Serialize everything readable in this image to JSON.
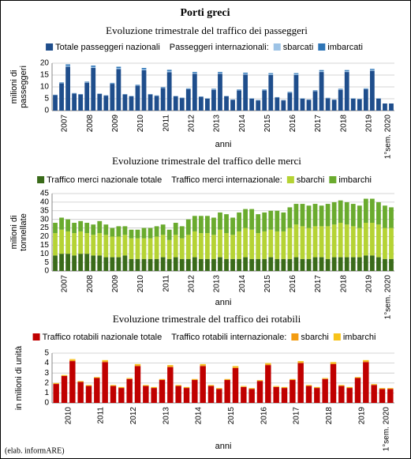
{
  "title": "Porti greci",
  "footer": "(elab. informARE)",
  "chart_data": [
    {
      "type": "bar",
      "stacked": true,
      "grid": true,
      "title": "Evoluzione trimestrale del traffico dei passeggeri",
      "ylabel": [
        "milioni di",
        "passeggeri"
      ],
      "xlabel": "anni",
      "legend_group_label": "Passeggeri internazionali:",
      "categories": [
        null,
        "2007",
        null,
        null,
        null,
        "2008",
        null,
        null,
        null,
        "2009",
        null,
        null,
        null,
        "2010",
        null,
        null,
        null,
        "2011",
        null,
        null,
        null,
        "2012",
        null,
        null,
        null,
        "2013",
        null,
        null,
        null,
        "2014",
        null,
        null,
        null,
        "2015",
        null,
        null,
        null,
        "2016",
        null,
        null,
        null,
        "2017",
        null,
        null,
        null,
        "2018",
        null,
        null,
        null,
        "2019",
        null,
        null,
        "1°sem. 2020",
        null
      ],
      "ylim": [
        0,
        20
      ],
      "yticks": [
        0,
        5,
        10,
        15,
        20
      ],
      "series": [
        {
          "name": "Totale passeggeri nazionali",
          "color": "#1f4e8c",
          "values": [
            6.5,
            11.5,
            18.5,
            7.2,
            6.8,
            11.8,
            18.0,
            7.0,
            6.3,
            11.3,
            17.5,
            6.8,
            6.0,
            10.5,
            17.0,
            6.8,
            6.2,
            9.5,
            16.2,
            6.0,
            5.3,
            9.0,
            15.5,
            5.8,
            5.0,
            8.8,
            15.5,
            6.0,
            4.5,
            8.5,
            15.2,
            5.0,
            4.3,
            8.5,
            15.0,
            5.5,
            4.3,
            7.5,
            15.0,
            5.0,
            4.5,
            8.2,
            16.3,
            5.2,
            4.5,
            8.8,
            16.3,
            5.0,
            4.8,
            9.0,
            16.8,
            5.0,
            3.0,
            3.0
          ]
        },
        {
          "name": "sbarcati",
          "color": "#9dc3e6",
          "values": [
            0.1,
            0.2,
            0.5,
            0.1,
            0.1,
            0.2,
            0.5,
            0.1,
            0.1,
            0.2,
            0.5,
            0.1,
            0.1,
            0.2,
            0.5,
            0.1,
            0.1,
            0.2,
            0.5,
            0.1,
            0.1,
            0.2,
            0.4,
            0.1,
            0.1,
            0.2,
            0.4,
            0.1,
            0.1,
            0.2,
            0.4,
            0.1,
            0.1,
            0.2,
            0.4,
            0.1,
            0.1,
            0.2,
            0.4,
            0.1,
            0.1,
            0.2,
            0.4,
            0.1,
            0.1,
            0.2,
            0.4,
            0.1,
            0.1,
            0.2,
            0.4,
            0.1,
            0.0,
            0.0
          ]
        },
        {
          "name": "imbarcati",
          "color": "#2e75b6",
          "values": [
            0.1,
            0.2,
            0.5,
            0.1,
            0.1,
            0.2,
            0.5,
            0.1,
            0.1,
            0.2,
            0.5,
            0.1,
            0.1,
            0.2,
            0.5,
            0.1,
            0.1,
            0.2,
            0.5,
            0.1,
            0.1,
            0.2,
            0.4,
            0.1,
            0.1,
            0.2,
            0.4,
            0.1,
            0.1,
            0.2,
            0.4,
            0.1,
            0.1,
            0.2,
            0.4,
            0.1,
            0.1,
            0.2,
            0.4,
            0.1,
            0.1,
            0.2,
            0.4,
            0.1,
            0.1,
            0.2,
            0.4,
            0.1,
            0.1,
            0.2,
            0.4,
            0.1,
            0.0,
            0.0
          ]
        }
      ]
    },
    {
      "type": "bar",
      "stacked": true,
      "grid": true,
      "title": "Evoluzione trimestrale del traffico delle merci",
      "ylabel": [
        "milioni di",
        "tonnellate"
      ],
      "xlabel": "anni",
      "legend_group_label": "Traffico merci internazionale:",
      "categories": [
        null,
        "2007",
        null,
        null,
        null,
        "2008",
        null,
        null,
        null,
        "2009",
        null,
        null,
        null,
        "2010",
        null,
        null,
        null,
        "2011",
        null,
        null,
        null,
        "2012",
        null,
        null,
        null,
        "2013",
        null,
        null,
        null,
        "2014",
        null,
        null,
        null,
        "2015",
        null,
        null,
        null,
        "2016",
        null,
        null,
        null,
        "2017",
        null,
        null,
        null,
        "2018",
        null,
        null,
        null,
        "2019",
        null,
        null,
        "1°sem. 2020",
        null
      ],
      "ylim": [
        0,
        45
      ],
      "yticks": [
        0,
        5,
        10,
        15,
        20,
        25,
        30,
        35,
        40,
        45
      ],
      "series": [
        {
          "name": "Traffico merci nazionale totale",
          "color": "#3a6b1a",
          "values": [
            9,
            10,
            10,
            9,
            10,
            10,
            9,
            9,
            8,
            8,
            8,
            9,
            7,
            7,
            7,
            7,
            7,
            8,
            7,
            8,
            7,
            7,
            8,
            7,
            7,
            7,
            8,
            7,
            7,
            7,
            8,
            7,
            7,
            7,
            8,
            7,
            7,
            7,
            8,
            7,
            7,
            8,
            8,
            7,
            8,
            8,
            8,
            8,
            8,
            9,
            9,
            8,
            7,
            7
          ]
        },
        {
          "name": "sbarchi",
          "color": "#b5d334",
          "values": [
            13,
            14,
            13,
            13,
            13,
            12,
            12,
            13,
            13,
            12,
            12,
            12,
            12,
            12,
            12,
            12,
            13,
            13,
            11,
            13,
            12,
            14,
            15,
            15,
            15,
            14,
            16,
            15,
            14,
            16,
            17,
            17,
            15,
            16,
            16,
            16,
            16,
            18,
            19,
            19,
            18,
            18,
            18,
            19,
            19,
            20,
            19,
            18,
            17,
            19,
            19,
            19,
            18,
            18
          ]
        },
        {
          "name": "imbarchi",
          "color": "#6aab2e",
          "values": [
            6,
            7,
            7,
            6,
            6,
            6,
            6,
            7,
            6,
            5,
            6,
            5,
            5,
            5,
            6,
            6,
            6,
            6,
            6,
            7,
            7,
            9,
            9,
            10,
            10,
            10,
            10,
            11,
            10,
            11,
            11,
            12,
            11,
            11,
            11,
            12,
            11,
            12,
            12,
            13,
            13,
            13,
            12,
            13,
            13,
            13,
            13,
            13,
            13,
            14,
            14,
            13,
            13,
            12
          ]
        }
      ]
    },
    {
      "type": "bar",
      "stacked": true,
      "grid": true,
      "title": "Evoluzione trimestrale del traffico dei rotabili",
      "ylabel": [
        "in milioni di unità"
      ],
      "xlabel": "anni",
      "legend_group_label": "Traffico rotabili internazionale:",
      "categories": [
        null,
        "2010",
        null,
        null,
        null,
        "2011",
        null,
        null,
        null,
        "2012",
        null,
        null,
        null,
        "2013",
        null,
        null,
        null,
        "2014",
        null,
        null,
        null,
        "2015",
        null,
        null,
        null,
        "2016",
        null,
        null,
        null,
        "2017",
        null,
        null,
        null,
        "2018",
        null,
        null,
        null,
        "2019",
        null,
        null,
        "1°sem. 2020",
        null
      ],
      "ylim": [
        0,
        5
      ],
      "yticks": [
        0,
        1,
        2,
        3,
        4,
        5
      ],
      "series": [
        {
          "name": "Traffico rotabili nazionale totale",
          "color": "#c00000",
          "values": [
            1.9,
            2.7,
            4.2,
            2.1,
            1.7,
            2.5,
            4.1,
            1.7,
            1.5,
            2.4,
            3.7,
            1.7,
            1.5,
            2.3,
            3.6,
            1.7,
            1.5,
            2.3,
            3.7,
            1.7,
            1.4,
            2.3,
            3.5,
            1.6,
            1.4,
            2.2,
            3.8,
            1.6,
            1.5,
            2.3,
            4.0,
            1.7,
            1.5,
            2.4,
            3.9,
            1.7,
            1.5,
            2.5,
            4.1,
            1.8,
            1.4,
            1.4
          ]
        },
        {
          "name": "sbarchi",
          "color": "#f39c12",
          "values": [
            0.05,
            0.05,
            0.1,
            0.05,
            0.05,
            0.05,
            0.1,
            0.05,
            0.05,
            0.05,
            0.1,
            0.05,
            0.05,
            0.05,
            0.1,
            0.05,
            0.05,
            0.05,
            0.1,
            0.05,
            0.05,
            0.05,
            0.1,
            0.05,
            0.05,
            0.05,
            0.1,
            0.05,
            0.05,
            0.05,
            0.1,
            0.05,
            0.05,
            0.05,
            0.1,
            0.05,
            0.05,
            0.05,
            0.1,
            0.05,
            0.05,
            0.05
          ]
        },
        {
          "name": "imbarchi",
          "color": "#f7c31a",
          "values": [
            0.05,
            0.05,
            0.1,
            0.05,
            0.05,
            0.05,
            0.1,
            0.05,
            0.05,
            0.05,
            0.1,
            0.05,
            0.05,
            0.05,
            0.1,
            0.05,
            0.05,
            0.05,
            0.1,
            0.05,
            0.05,
            0.05,
            0.1,
            0.05,
            0.05,
            0.05,
            0.1,
            0.05,
            0.05,
            0.05,
            0.1,
            0.05,
            0.05,
            0.05,
            0.1,
            0.05,
            0.05,
            0.05,
            0.1,
            0.05,
            0.05,
            0.05
          ]
        }
      ]
    }
  ]
}
